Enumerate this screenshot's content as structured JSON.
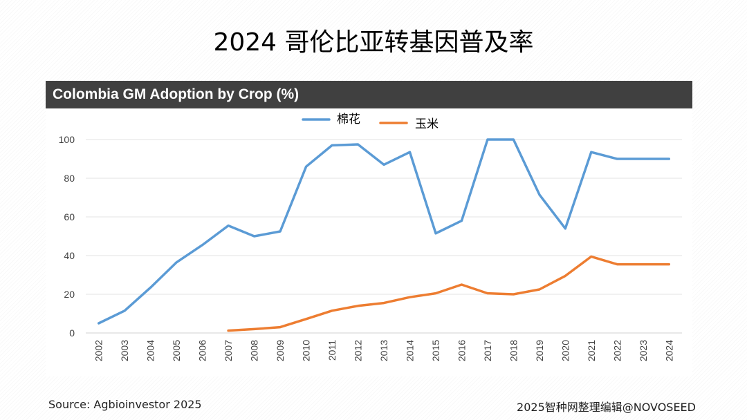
{
  "page": {
    "title": "2024 哥伦比亚转基因普及率"
  },
  "footer": {
    "source": "Source: Agbioinvestor 2025",
    "credit": "2025智种网整理编辑@NOVOSEED"
  },
  "chart_data": {
    "type": "line",
    "title": "Colombia GM Adoption by Crop (%)",
    "xlabel": "",
    "ylabel": "",
    "categories": [
      "2002",
      "2003",
      "2004",
      "2005",
      "2006",
      "2007",
      "2008",
      "2009",
      "2010",
      "2011",
      "2012",
      "2013",
      "2014",
      "2015",
      "2016",
      "2017",
      "2018",
      "2019",
      "2020",
      "2021",
      "2022",
      "2023",
      "2024"
    ],
    "ylim": [
      0,
      100
    ],
    "yticks": [
      0,
      20,
      40,
      60,
      80,
      100
    ],
    "grid": true,
    "legend_position": "top",
    "series": [
      {
        "name": "棉花",
        "color": "#5B9BD5",
        "values": [
          5,
          11.5,
          23.5,
          36.5,
          45.5,
          55.5,
          50,
          52.5,
          86,
          97,
          97.5,
          87,
          93.5,
          51.5,
          58,
          100,
          100,
          71.5,
          54,
          93.5,
          90,
          90,
          90
        ]
      },
      {
        "name": "玉米",
        "color": "#ED7D31",
        "values": [
          null,
          null,
          null,
          null,
          null,
          1.2,
          2,
          3,
          7.2,
          11.5,
          14,
          15.5,
          18.5,
          20.5,
          25,
          20.5,
          20,
          22.5,
          29.5,
          39.5,
          35.5,
          35.5,
          35.5
        ]
      }
    ]
  }
}
